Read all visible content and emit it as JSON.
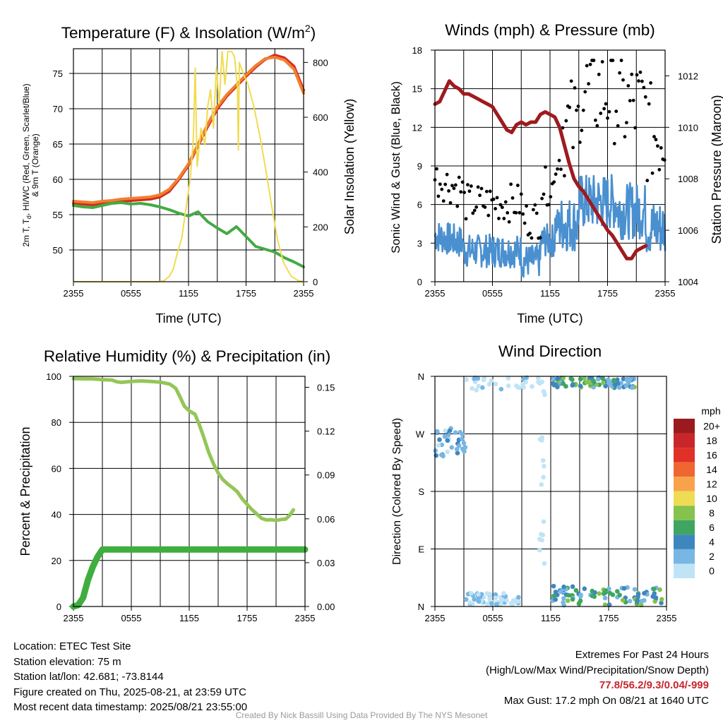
{
  "panels": {
    "temperature": {
      "title_main": "Temperature (F) & Insolation (W/m",
      "title_sup": "2",
      "title_end": ")",
      "ylabel_line1": "2m T, T",
      "ylabel_sub": "d",
      "ylabel_line1_end": ", HI/WC (Red, Green, Scarlet/Blue)",
      "ylabel_line2": "& 9m T (Orange)",
      "ylabel_right": "Solar Insolation (Yellow)",
      "xlabel": "Time (UTC)"
    },
    "winds": {
      "title": "Winds (mph) & Pressure (mb)",
      "ylabel_left": "Sonic Wind & Gust (Blue, Black)",
      "ylabel_right": "Station Pressure (Maroon)",
      "xlabel": "Time (UTC)"
    },
    "humidity": {
      "title": "Relative Humidity (%) & Precipitation (in)",
      "ylabel_left": "Percent & Precipitation"
    },
    "direction": {
      "title": "Wind Direction",
      "ylabel_left": "Direction (Colored By Speed)",
      "colorbar_title": "mph"
    }
  },
  "chart_data": [
    {
      "id": "temperature",
      "type": "line",
      "x_ticks": [
        "2355",
        "0555",
        "1155",
        "1755",
        "2355"
      ],
      "xlim": [
        0,
        24
      ],
      "ylim": [
        45.5,
        78.5
      ],
      "y_ticks": [
        50,
        55,
        60,
        65,
        70,
        75
      ],
      "y2lim": [
        0,
        850
      ],
      "y2_ticks": [
        0,
        200,
        400,
        600,
        800
      ],
      "grid": true,
      "series": [
        {
          "color": "#d42a20",
          "axis": "left",
          "values": [
            [
              0,
              56.6
            ],
            [
              1,
              56.5
            ],
            [
              2,
              56.4
            ],
            [
              3,
              56.6
            ],
            [
              4,
              56.7
            ],
            [
              5,
              56.9
            ],
            [
              6,
              57.0
            ],
            [
              7,
              57.1
            ],
            [
              8,
              57.2
            ],
            [
              9,
              57.5
            ],
            [
              10,
              58.3
            ],
            [
              11,
              60.0
            ],
            [
              12,
              62.0
            ],
            [
              13,
              64.8
            ],
            [
              14,
              67.5
            ],
            [
              15,
              70.0
            ],
            [
              16,
              71.8
            ],
            [
              17,
              73.2
            ],
            [
              18,
              74.6
            ],
            [
              19,
              75.9
            ],
            [
              20,
              77.0
            ],
            [
              21,
              77.6
            ],
            [
              22,
              77.2
            ],
            [
              23,
              76.0
            ],
            [
              24,
              72.6
            ]
          ]
        },
        {
          "color": "#f08030",
          "axis": "left",
          "values": [
            [
              0,
              56.9
            ],
            [
              1,
              56.8
            ],
            [
              2,
              56.7
            ],
            [
              3,
              56.9
            ],
            [
              4,
              57.0
            ],
            [
              5,
              57.2
            ],
            [
              6,
              57.3
            ],
            [
              7,
              57.4
            ],
            [
              8,
              57.5
            ],
            [
              9,
              57.8
            ],
            [
              10,
              58.6
            ],
            [
              11,
              60.2
            ],
            [
              12,
              62.2
            ],
            [
              13,
              65.0
            ],
            [
              14,
              67.8
            ],
            [
              15,
              70.3
            ],
            [
              16,
              72.0
            ],
            [
              17,
              73.4
            ],
            [
              18,
              74.8
            ],
            [
              19,
              76.1
            ],
            [
              20,
              77.1
            ],
            [
              21,
              77.3
            ],
            [
              22,
              76.9
            ],
            [
              23,
              75.6
            ],
            [
              24,
              72.2
            ]
          ]
        },
        {
          "color": "#44aa44",
          "axis": "left",
          "values": [
            [
              0,
              56.3
            ],
            [
              1,
              56.1
            ],
            [
              2,
              56.0
            ],
            [
              3,
              56.3
            ],
            [
              4,
              56.6
            ],
            [
              5,
              56.7
            ],
            [
              6,
              56.5
            ],
            [
              7,
              56.6
            ],
            [
              8,
              56.4
            ],
            [
              9,
              56.1
            ],
            [
              10,
              55.7
            ],
            [
              11,
              55.2
            ],
            [
              12,
              54.8
            ],
            [
              13,
              55.4
            ],
            [
              14,
              54.0
            ],
            [
              15,
              53.1
            ],
            [
              16,
              52.3
            ],
            [
              17,
              53.3
            ],
            [
              18,
              51.9
            ],
            [
              19,
              50.5
            ],
            [
              20,
              50.1
            ],
            [
              21,
              49.7
            ],
            [
              22,
              48.9
            ],
            [
              23,
              48.3
            ],
            [
              24,
              47.6
            ]
          ]
        },
        {
          "color": "#f0dc50",
          "axis": "right",
          "values": [
            [
              0,
              0
            ],
            [
              8.9,
              0
            ],
            [
              9.5,
              5
            ],
            [
              10,
              20
            ],
            [
              10.4,
              45
            ],
            [
              10.8,
              100
            ],
            [
              11.3,
              160
            ],
            [
              11.7,
              260
            ],
            [
              12.2,
              380
            ],
            [
              12.5,
              520
            ],
            [
              12.7,
              780
            ],
            [
              12.9,
              420
            ],
            [
              13.3,
              560
            ],
            [
              13.7,
              500
            ],
            [
              14.0,
              640
            ],
            [
              14.3,
              700
            ],
            [
              14.6,
              560
            ],
            [
              14.9,
              780
            ],
            [
              15.2,
              650
            ],
            [
              15.5,
              840
            ],
            [
              15.8,
              720
            ],
            [
              16.1,
              840
            ],
            [
              16.5,
              840
            ],
            [
              16.8,
              820
            ],
            [
              17.1,
              710
            ],
            [
              17.2,
              480
            ],
            [
              17.3,
              800
            ],
            [
              17.7,
              760
            ],
            [
              18.2,
              720
            ],
            [
              18.8,
              640
            ],
            [
              19.5,
              520
            ],
            [
              20.1,
              400
            ],
            [
              20.7,
              270
            ],
            [
              21.3,
              150
            ],
            [
              21.9,
              70
            ],
            [
              22.7,
              20
            ],
            [
              23.4,
              5
            ],
            [
              24,
              0
            ]
          ]
        }
      ]
    },
    {
      "id": "winds",
      "type": "line",
      "x_ticks": [
        "2355",
        "0555",
        "1155",
        "1755",
        "2355"
      ],
      "xlim": [
        0,
        24
      ],
      "ylim": [
        0,
        18
      ],
      "y_ticks": [
        0,
        3,
        6,
        9,
        12,
        15,
        18
      ],
      "y2lim": [
        1004,
        1013
      ],
      "y2_ticks": [
        1004,
        1006,
        1008,
        1010,
        1012
      ],
      "grid": true,
      "series": [
        {
          "color": "#9e1a1e",
          "axis": "right",
          "values": [
            [
              0,
              1010.9
            ],
            [
              0.5,
              1011.0
            ],
            [
              1,
              1011.4
            ],
            [
              1.5,
              1011.8
            ],
            [
              2,
              1011.6
            ],
            [
              2.5,
              1011.5
            ],
            [
              3,
              1011.3
            ],
            [
              3.5,
              1011.3
            ],
            [
              4,
              1011.2
            ],
            [
              4.5,
              1011.1
            ],
            [
              5,
              1011.0
            ],
            [
              5.5,
              1010.9
            ],
            [
              6,
              1010.8
            ],
            [
              6.5,
              1010.5
            ],
            [
              7,
              1010.2
            ],
            [
              7.5,
              1009.9
            ],
            [
              8,
              1009.8
            ],
            [
              8.5,
              1010.1
            ],
            [
              9,
              1010.2
            ],
            [
              9.5,
              1010.1
            ],
            [
              10,
              1010.2
            ],
            [
              10.5,
              1010.2
            ],
            [
              11,
              1010.5
            ],
            [
              11.5,
              1010.6
            ],
            [
              12,
              1010.5
            ],
            [
              12.5,
              1010.4
            ],
            [
              13,
              1010.0
            ],
            [
              13.5,
              1009.3
            ],
            [
              14,
              1008.6
            ],
            [
              14.5,
              1008.0
            ],
            [
              15,
              1007.7
            ],
            [
              15.5,
              1007.5
            ],
            [
              16,
              1007.2
            ],
            [
              16.5,
              1006.9
            ],
            [
              17,
              1006.6
            ],
            [
              17.5,
              1006.3
            ],
            [
              18,
              1006.0
            ],
            [
              18.5,
              1005.8
            ],
            [
              19,
              1005.5
            ],
            [
              19.5,
              1005.2
            ],
            [
              20,
              1004.9
            ],
            [
              20.5,
              1004.9
            ],
            [
              21,
              1005.2
            ],
            [
              21.5,
              1005.3
            ],
            [
              22,
              1005.4
            ]
          ]
        }
      ]
    },
    {
      "id": "humidity",
      "type": "line",
      "x_ticks": [
        "2355",
        "0555",
        "1155",
        "1755",
        "2355"
      ],
      "xlim": [
        0,
        24
      ],
      "ylim": [
        0,
        100
      ],
      "y_ticks": [
        0,
        20,
        40,
        60,
        80,
        100
      ],
      "y2lim": [
        0,
        0.1575
      ],
      "y2_ticks": [
        "0.00",
        "0.03",
        "0.06",
        "0.09",
        "0.12",
        "0.15"
      ],
      "grid": true,
      "series": [
        {
          "color": "#94c657",
          "axis": "left",
          "values": [
            [
              0,
              99
            ],
            [
              2,
              98.9
            ],
            [
              3,
              98.6
            ],
            [
              4,
              98.4
            ],
            [
              4.5,
              97.6
            ],
            [
              5,
              97.4
            ],
            [
              6,
              97.8
            ],
            [
              7,
              98.0
            ],
            [
              8,
              97.8
            ],
            [
              9,
              97.5
            ],
            [
              10,
              96.6
            ],
            [
              10.6,
              94.8
            ],
            [
              11,
              91.5
            ],
            [
              11.5,
              87.0
            ],
            [
              12,
              85.0
            ],
            [
              12.6,
              83.5
            ],
            [
              13,
              79.5
            ],
            [
              13.5,
              73.6
            ],
            [
              14,
              67.2
            ],
            [
              14.5,
              62.1
            ],
            [
              15,
              58.0
            ],
            [
              15.5,
              55.1
            ],
            [
              16,
              53.2
            ],
            [
              16.5,
              51.6
            ],
            [
              17,
              49.8
            ],
            [
              17.5,
              46.7
            ],
            [
              18,
              44.4
            ],
            [
              18.5,
              42.1
            ],
            [
              19,
              40.2
            ],
            [
              19.5,
              38.3
            ],
            [
              20,
              37.6
            ],
            [
              20.5,
              37.7
            ],
            [
              21,
              37.4
            ],
            [
              21.5,
              37.8
            ],
            [
              22,
              38.0
            ],
            [
              22.4,
              39.5
            ],
            [
              22.8,
              42.0
            ]
          ]
        },
        {
          "color": "#3fae3f",
          "axis": "right",
          "values": [
            [
              0,
              0
            ],
            [
              0.5,
              0.001
            ],
            [
              1,
              0.006
            ],
            [
              1.5,
              0.018
            ],
            [
              2,
              0.027
            ],
            [
              2.5,
              0.034
            ],
            [
              3,
              0.039
            ],
            [
              24,
              0.039
            ]
          ]
        }
      ]
    },
    {
      "id": "direction",
      "type": "scatter",
      "x_ticks": [
        "2355",
        "0555",
        "1155",
        "1755",
        "2355"
      ],
      "xlim": [
        0,
        24
      ],
      "y_ticks": [
        "N",
        "E",
        "S",
        "W",
        "N"
      ],
      "ylim": [
        0,
        360
      ],
      "grid": true,
      "colorbar": {
        "labels": [
          "20+",
          "18",
          "16",
          "14",
          "12",
          "10",
          "8",
          "6",
          "4",
          "2",
          "0"
        ],
        "colors": [
          "#9a1a1e",
          "#c8262b",
          "#df3128",
          "#ef6630",
          "#f8a34a",
          "#eedc55",
          "#85c24e",
          "#3ea660",
          "#3f86bf",
          "#78b6e3",
          "#bfe4f6"
        ]
      }
    }
  ],
  "footer": {
    "location": "Location: ETEC Test Site",
    "elevation": "Station elevation: 75 m",
    "latlon": "Station lat/lon: 42.681; -73.8144",
    "created": "Figure created on Thu, 2025-08-21, at 23:59 UTC",
    "recent": "Most recent data timestamp: 2025/08/21 23:55:00",
    "extremes_title": "Extremes For Past 24 Hours",
    "extremes_desc": "(High/Low/Max Wind/Precipitation/Snow Depth)",
    "extremes_values": "77.8/56.2/9.3/0.04/-999",
    "max_gust": "Max Gust: 17.2 mph On 08/21 at 1640 UTC",
    "credit": "Created By Nick Bassill Using Data Provided By The NYS Mesonet"
  }
}
